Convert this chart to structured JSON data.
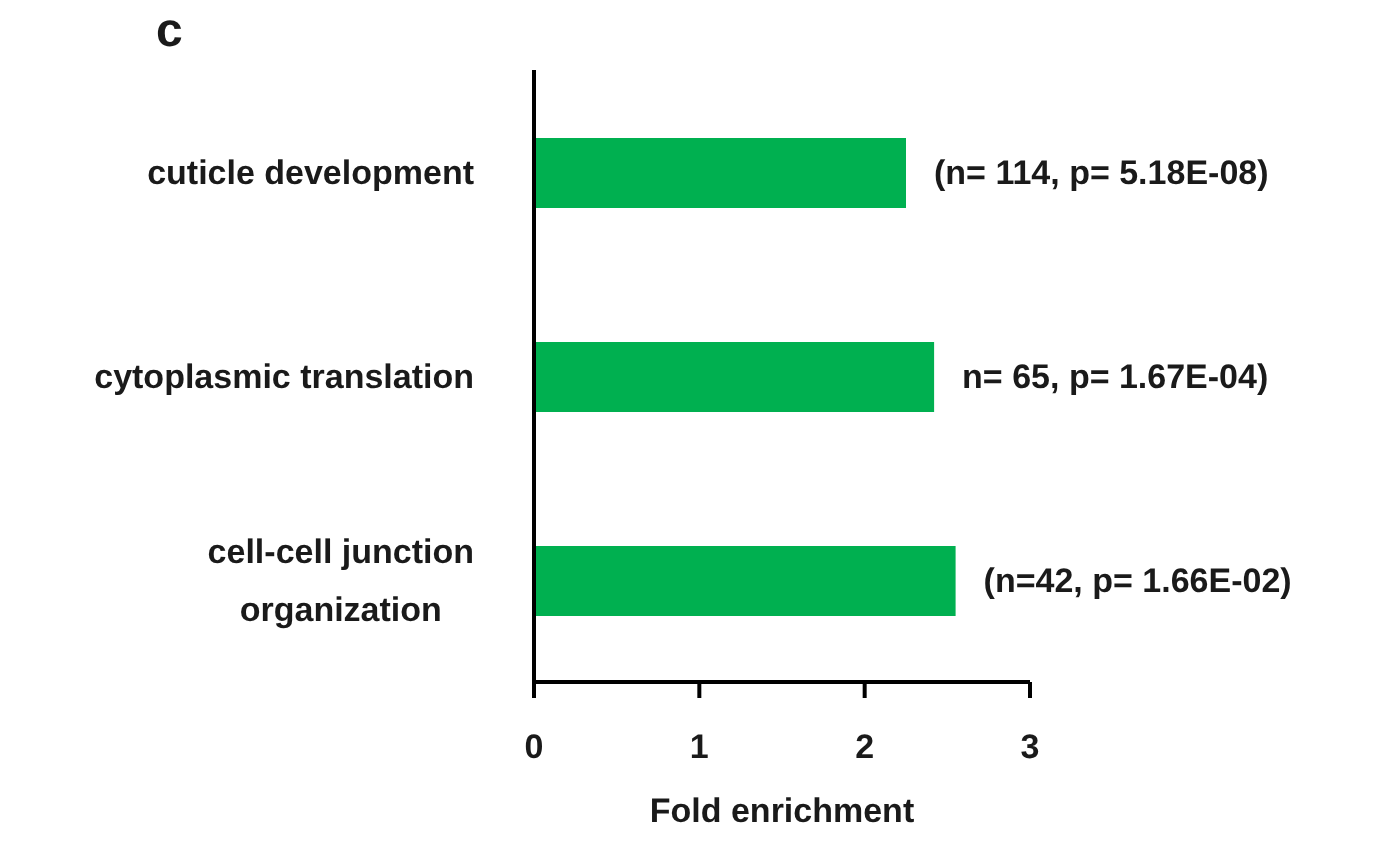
{
  "chart_data": {
    "type": "bar",
    "orientation": "horizontal",
    "categories": [
      "cuticle development",
      "cytoplasmic translation",
      "cell-cell junction organization"
    ],
    "values": [
      2.25,
      2.42,
      2.55
    ],
    "color": "#00b050",
    "value_labels": [
      "(n= 114, p= 5.18E-08)",
      "n= 65, p= 1.67E-04)",
      "(n=42, p= 1.66E-02)"
    ],
    "xlabel": "Fold enrichment",
    "xlim": [
      0,
      3
    ],
    "xticks": [
      0,
      1,
      2,
      3
    ],
    "annotations": [
      "c"
    ]
  }
}
